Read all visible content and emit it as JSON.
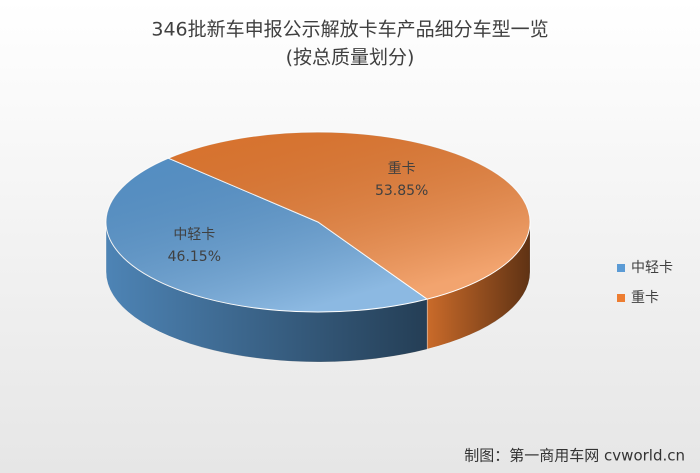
{
  "chart_data": {
    "type": "pie3d",
    "title": "346批新车申报公示解放卡车产品细分车型一览",
    "subtitle": "(按总质量划分)",
    "categories": [
      "中轻卡",
      "重卡"
    ],
    "values": [
      46.15,
      53.85
    ],
    "value_labels": [
      "46.15%",
      "53.85%"
    ],
    "colors": [
      "#5b9bd5",
      "#ed7d31"
    ],
    "legend": "right",
    "source": "制图：第一商用车网 cvworld.cn"
  }
}
